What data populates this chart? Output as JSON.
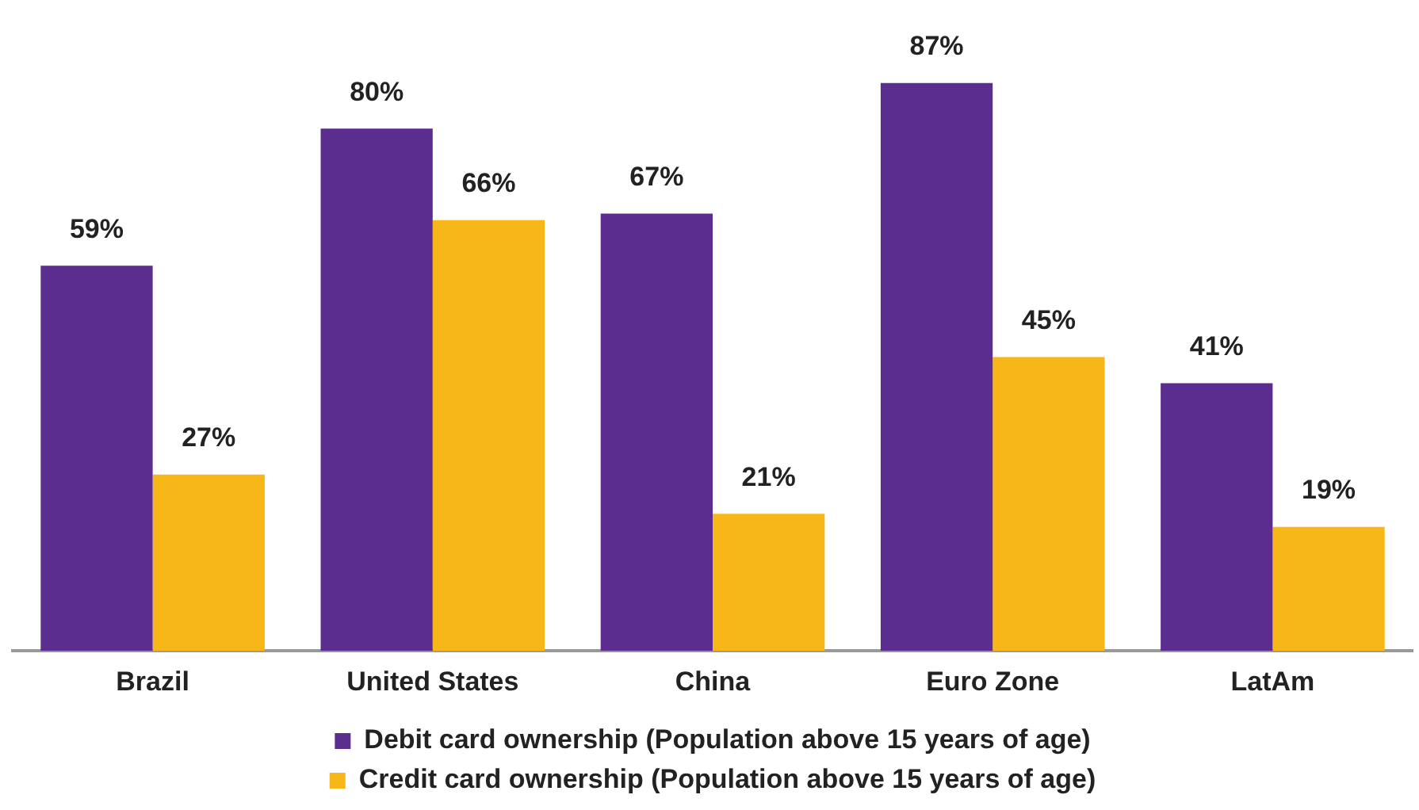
{
  "chart_data": {
    "type": "bar",
    "categories": [
      "Brazil",
      "United States",
      "China",
      "Euro Zone",
      "LatAm"
    ],
    "series": [
      {
        "name": "Debit card ownership (Population above 15 years of age)",
        "color": "#5b2d8e",
        "values": [
          59,
          80,
          67,
          87,
          41
        ],
        "value_labels": [
          "59%",
          "80%",
          "67%",
          "87%",
          "41%"
        ]
      },
      {
        "name": "Credit card ownership (Population above 15 years of age)",
        "color": "#f7b719",
        "values": [
          27,
          66,
          21,
          45,
          19
        ],
        "value_labels": [
          "27%",
          "66%",
          "21%",
          "45%",
          "19%"
        ]
      }
    ],
    "legend": "bottom"
  }
}
